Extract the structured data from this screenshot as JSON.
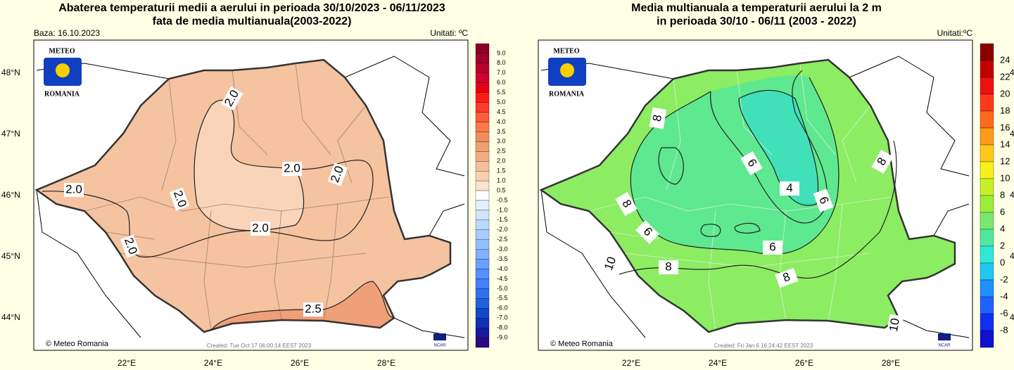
{
  "panels": [
    {
      "title_lines": [
        "Abaterea temperaturii medii a aerului in perioada 30/10/2023 - 06/11/2023",
        "fata de media multianuala(2003-2022)"
      ],
      "baza": "Baza: 16.10.2023",
      "units": "Unitati: ºC",
      "logo_top": "METEO",
      "logo_bottom": "ROMANIA",
      "credit": "© Meteo Romania",
      "created": "Created: Tue Oct 17 06:00:14 EEST 2023",
      "ncar": "NCAR",
      "lat_labels": [
        "48°N",
        "47°N",
        "46°N",
        "45°N",
        "44°N"
      ],
      "lon_labels": [
        "22°E",
        "24°E",
        "26°E",
        "28°E"
      ],
      "colorbar_labels": [
        "9.0",
        "8.0",
        "7.0",
        "6.0",
        "5.5",
        "5.0",
        "4.5",
        "4.0",
        "3.5",
        "3.0",
        "2.5",
        "2.0",
        "1.5",
        "1.0",
        "0.5",
        "-0.5",
        "-1.0",
        "-1.5",
        "-2.0",
        "-2.5",
        "-3.0",
        "-3.5",
        "-4.0",
        "-4.5",
        "-5.0",
        "-5.5",
        "-6.0",
        "-7.0",
        "-8.0",
        "-9.0"
      ],
      "colorbar_colors": [
        "#8a0028",
        "#a0002a",
        "#b8002c",
        "#d00030",
        "#e60014",
        "#ff1a1a",
        "#ff3a2a",
        "#ff5a3a",
        "#ff7848",
        "#f48c5a",
        "#ee9e70",
        "#f2ad84",
        "#f5bf9a",
        "#f8d0b0",
        "#fbe2cc",
        "#ffffff",
        "#e4f0ff",
        "#d0e4ff",
        "#bcd8ff",
        "#a8ccff",
        "#94bfff",
        "#80b0ff",
        "#6aa0ff",
        "#5690ff",
        "#4280ff",
        "#3070f0",
        "#2060e0",
        "#1048d0",
        "#1030b8",
        "#1818a0",
        "#2a0a80"
      ],
      "contour_labels": [
        "2.0",
        "2.0",
        "2.0",
        "2.0",
        "2.0",
        "2.0",
        "2.0",
        "2.5"
      ]
    },
    {
      "title_lines": [
        "Media multianuala a temperaturii aerului la 2 m",
        "in perioada 30/10 - 06/11 (2003 - 2022)"
      ],
      "units": "Unitati:ºC",
      "logo_top": "METEO",
      "logo_bottom": "ROMANIA",
      "credit": "© Meteo Romania",
      "created": "Created: Fri Jan  6 16:24:42 EEST 2023",
      "ncar": "NCAR",
      "lat_labels": [
        "48°N",
        "47°N",
        "46°N",
        "45°N",
        "44°N"
      ],
      "lon_labels": [
        "22°E",
        "24°E",
        "26°E",
        "28°E"
      ],
      "colorbar_labels": [
        "24",
        "22",
        "20",
        "18",
        "16",
        "14",
        "12",
        "10",
        "8",
        "6",
        "4",
        "2",
        "0",
        "-2",
        "-4",
        "-6",
        "-8"
      ],
      "colorbar_colors": [
        "#8a0000",
        "#c00000",
        "#ee1010",
        "#ff3a1a",
        "#ff6a1a",
        "#ff9a1a",
        "#ffc81a",
        "#f8f01a",
        "#c8f028",
        "#9aee38",
        "#78e870",
        "#50e8a0",
        "#30e8d8",
        "#20c8f0",
        "#2090ff",
        "#2060ff",
        "#1030f0",
        "#1010d0"
      ],
      "contour_labels": [
        "8",
        "6",
        "4",
        "6",
        "8",
        "8",
        "6",
        "6",
        "8",
        "8",
        "10",
        "10"
      ]
    }
  ]
}
